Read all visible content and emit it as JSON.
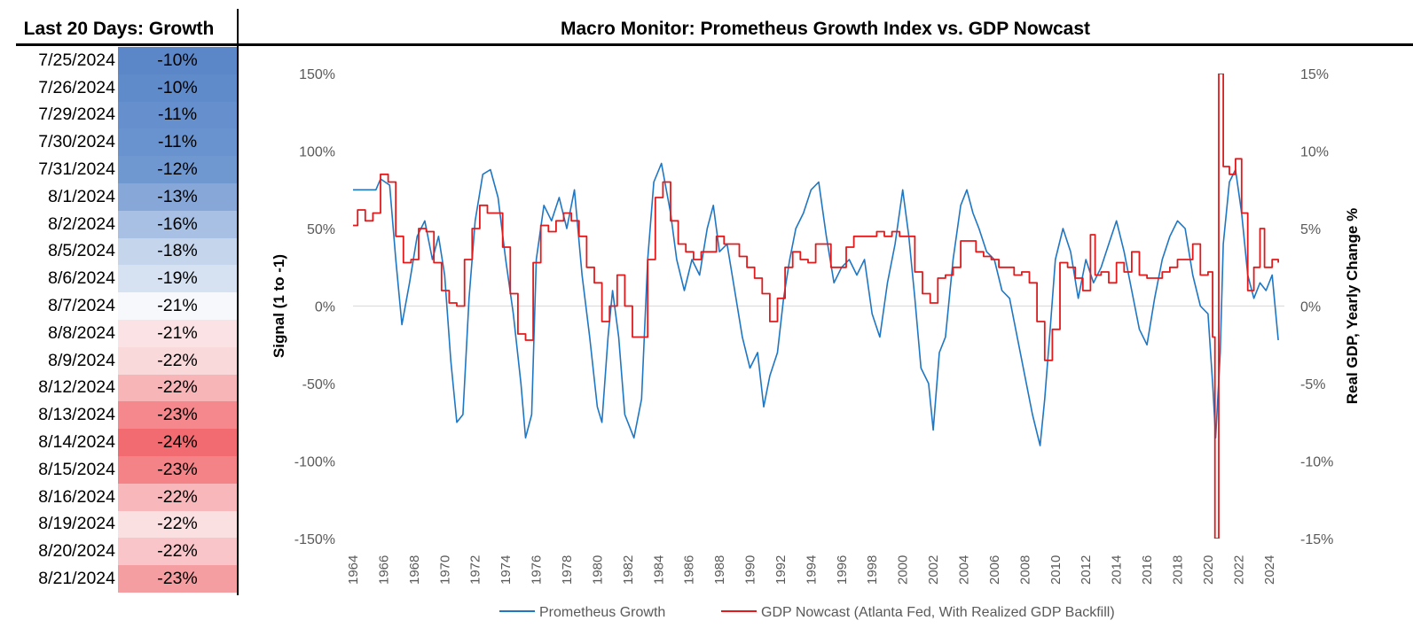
{
  "left_panel": {
    "title": "Last 20 Days: Growth",
    "rows": [
      {
        "date": "7/25/2024",
        "value": "-10%",
        "color": "#5b87c8"
      },
      {
        "date": "7/26/2024",
        "value": "-10%",
        "color": "#5f8bca"
      },
      {
        "date": "7/29/2024",
        "value": "-11%",
        "color": "#6690cd"
      },
      {
        "date": "7/30/2024",
        "value": "-11%",
        "color": "#6893ce"
      },
      {
        "date": "7/31/2024",
        "value": "-12%",
        "color": "#7098d0"
      },
      {
        "date": "8/1/2024",
        "value": "-13%",
        "color": "#86a7d7"
      },
      {
        "date": "8/2/2024",
        "value": "-16%",
        "color": "#a8c0e3"
      },
      {
        "date": "8/5/2024",
        "value": "-18%",
        "color": "#c5d5ec"
      },
      {
        "date": "8/6/2024",
        "value": "-19%",
        "color": "#d6e1f1"
      },
      {
        "date": "8/7/2024",
        "value": "-21%",
        "color": "#f6f8fc"
      },
      {
        "date": "8/8/2024",
        "value": "-21%",
        "color": "#fbe2e4"
      },
      {
        "date": "8/9/2024",
        "value": "-22%",
        "color": "#fad9db"
      },
      {
        "date": "8/12/2024",
        "value": "-22%",
        "color": "#f8b5b8"
      },
      {
        "date": "8/13/2024",
        "value": "-23%",
        "color": "#f4888c"
      },
      {
        "date": "8/14/2024",
        "value": "-24%",
        "color": "#f26b70"
      },
      {
        "date": "8/15/2024",
        "value": "-23%",
        "color": "#f38387"
      },
      {
        "date": "8/16/2024",
        "value": "-22%",
        "color": "#f8b7ba"
      },
      {
        "date": "8/19/2024",
        "value": "-22%",
        "color": "#fbe0e2"
      },
      {
        "date": "8/20/2024",
        "value": "-22%",
        "color": "#f9c5c8"
      },
      {
        "date": "8/21/2024",
        "value": "-23%",
        "color": "#f59ea1"
      }
    ]
  },
  "chart_data": {
    "type": "line",
    "title": "Macro Monitor: Prometheus Growth Index vs. GDP Nowcast",
    "ylabel": "Signal (1 to -1)",
    "y2label": "Real GDP, Yearly Change %",
    "ylim": [
      -1.5,
      1.5
    ],
    "y2lim": [
      -15,
      15
    ],
    "xlim": [
      1964,
      2025
    ],
    "yticks": [
      1.5,
      1.0,
      0.5,
      0.0,
      -0.5,
      -1.0,
      -1.5
    ],
    "yticklabels": [
      "150%",
      "100%",
      "50%",
      "0%",
      "-50%",
      "-100%",
      "-150%"
    ],
    "y2ticks": [
      15,
      10,
      5,
      0,
      -5,
      -10,
      -15
    ],
    "y2ticklabels": [
      "15%",
      "10%",
      "5%",
      "0%",
      "-5%",
      "-10%",
      "-15%"
    ],
    "xticks": [
      "1964",
      "1966",
      "1968",
      "1970",
      "1972",
      "1974",
      "1976",
      "1978",
      "1980",
      "1982",
      "1984",
      "1986",
      "1988",
      "1990",
      "1992",
      "1994",
      "1996",
      "1998",
      "2000",
      "2002",
      "2004",
      "2006",
      "2008",
      "2010",
      "2012",
      "2014",
      "2016",
      "2018",
      "2020",
      "2022",
      "2024"
    ],
    "legend_position": "bottom",
    "series": [
      {
        "name": "Prometheus Growth",
        "axis": "left",
        "color": "#1f77c4",
        "points": [
          [
            1964.0,
            0.75
          ],
          [
            1965.5,
            0.75
          ],
          [
            1965.8,
            0.82
          ],
          [
            1966.4,
            0.78
          ],
          [
            1966.8,
            0.3
          ],
          [
            1967.2,
            -0.12
          ],
          [
            1967.7,
            0.15
          ],
          [
            1968.2,
            0.45
          ],
          [
            1968.7,
            0.55
          ],
          [
            1969.2,
            0.3
          ],
          [
            1969.6,
            0.45
          ],
          [
            1970.0,
            0.2
          ],
          [
            1970.4,
            -0.35
          ],
          [
            1970.8,
            -0.75
          ],
          [
            1971.2,
            -0.7
          ],
          [
            1971.6,
            0.05
          ],
          [
            1972.0,
            0.55
          ],
          [
            1972.5,
            0.85
          ],
          [
            1973.0,
            0.88
          ],
          [
            1973.5,
            0.7
          ],
          [
            1974.0,
            0.3
          ],
          [
            1974.5,
            -0.05
          ],
          [
            1975.0,
            -0.5
          ],
          [
            1975.3,
            -0.85
          ],
          [
            1975.7,
            -0.7
          ],
          [
            1976.0,
            0.3
          ],
          [
            1976.5,
            0.65
          ],
          [
            1977.0,
            0.55
          ],
          [
            1977.5,
            0.7
          ],
          [
            1978.0,
            0.5
          ],
          [
            1978.5,
            0.75
          ],
          [
            1979.0,
            0.2
          ],
          [
            1979.5,
            -0.2
          ],
          [
            1980.0,
            -0.65
          ],
          [
            1980.3,
            -0.75
          ],
          [
            1980.7,
            -0.2
          ],
          [
            1981.0,
            0.1
          ],
          [
            1981.4,
            -0.2
          ],
          [
            1981.8,
            -0.7
          ],
          [
            1982.4,
            -0.85
          ],
          [
            1982.9,
            -0.6
          ],
          [
            1983.3,
            0.3
          ],
          [
            1983.7,
            0.8
          ],
          [
            1984.2,
            0.92
          ],
          [
            1984.8,
            0.6
          ],
          [
            1985.2,
            0.3
          ],
          [
            1985.7,
            0.1
          ],
          [
            1986.2,
            0.3
          ],
          [
            1986.7,
            0.2
          ],
          [
            1987.2,
            0.5
          ],
          [
            1987.6,
            0.65
          ],
          [
            1988.0,
            0.35
          ],
          [
            1988.5,
            0.4
          ],
          [
            1989.0,
            0.1
          ],
          [
            1989.5,
            -0.2
          ],
          [
            1990.0,
            -0.4
          ],
          [
            1990.5,
            -0.3
          ],
          [
            1990.9,
            -0.65
          ],
          [
            1991.3,
            -0.45
          ],
          [
            1991.8,
            -0.3
          ],
          [
            1992.2,
            0.05
          ],
          [
            1992.6,
            0.3
          ],
          [
            1993.0,
            0.5
          ],
          [
            1993.5,
            0.6
          ],
          [
            1994.0,
            0.75
          ],
          [
            1994.5,
            0.8
          ],
          [
            1995.0,
            0.45
          ],
          [
            1995.5,
            0.15
          ],
          [
            1996.0,
            0.25
          ],
          [
            1996.5,
            0.3
          ],
          [
            1997.0,
            0.2
          ],
          [
            1997.5,
            0.3
          ],
          [
            1998.0,
            -0.05
          ],
          [
            1998.5,
            -0.2
          ],
          [
            1999.0,
            0.15
          ],
          [
            1999.5,
            0.4
          ],
          [
            2000.0,
            0.75
          ],
          [
            2000.4,
            0.45
          ],
          [
            2000.8,
            0.05
          ],
          [
            2001.2,
            -0.4
          ],
          [
            2001.7,
            -0.5
          ],
          [
            2002.0,
            -0.8
          ],
          [
            2002.4,
            -0.3
          ],
          [
            2002.8,
            -0.2
          ],
          [
            2003.3,
            0.3
          ],
          [
            2003.8,
            0.65
          ],
          [
            2004.2,
            0.75
          ],
          [
            2004.6,
            0.6
          ],
          [
            2005.0,
            0.5
          ],
          [
            2005.5,
            0.35
          ],
          [
            2006.0,
            0.3
          ],
          [
            2006.5,
            0.1
          ],
          [
            2007.0,
            0.05
          ],
          [
            2007.5,
            -0.2
          ],
          [
            2008.0,
            -0.45
          ],
          [
            2008.5,
            -0.7
          ],
          [
            2009.0,
            -0.9
          ],
          [
            2009.3,
            -0.6
          ],
          [
            2009.7,
            -0.1
          ],
          [
            2010.0,
            0.3
          ],
          [
            2010.5,
            0.5
          ],
          [
            2011.0,
            0.35
          ],
          [
            2011.5,
            0.05
          ],
          [
            2012.0,
            0.3
          ],
          [
            2012.5,
            0.15
          ],
          [
            2013.0,
            0.25
          ],
          [
            2013.5,
            0.4
          ],
          [
            2014.0,
            0.55
          ],
          [
            2014.5,
            0.35
          ],
          [
            2015.0,
            0.1
          ],
          [
            2015.5,
            -0.15
          ],
          [
            2016.0,
            -0.25
          ],
          [
            2016.5,
            0.05
          ],
          [
            2017.0,
            0.3
          ],
          [
            2017.5,
            0.45
          ],
          [
            2018.0,
            0.55
          ],
          [
            2018.5,
            0.5
          ],
          [
            2019.0,
            0.2
          ],
          [
            2019.5,
            0.0
          ],
          [
            2020.0,
            -0.05
          ],
          [
            2020.3,
            -0.5
          ],
          [
            2020.5,
            -0.85
          ],
          [
            2020.8,
            -0.3
          ],
          [
            2021.0,
            0.4
          ],
          [
            2021.4,
            0.8
          ],
          [
            2021.8,
            0.88
          ],
          [
            2022.2,
            0.6
          ],
          [
            2022.6,
            0.2
          ],
          [
            2023.0,
            0.05
          ],
          [
            2023.4,
            0.15
          ],
          [
            2023.8,
            0.1
          ],
          [
            2024.2,
            0.2
          ],
          [
            2024.6,
            -0.22
          ]
        ]
      },
      {
        "name": "GDP Nowcast (Atlanta Fed, With Realized GDP Backfill)",
        "axis": "right",
        "color": "#e31a1c",
        "points": [
          [
            1964.0,
            5.2
          ],
          [
            1964.3,
            6.2
          ],
          [
            1964.8,
            5.5
          ],
          [
            1965.3,
            6.0
          ],
          [
            1965.8,
            8.5
          ],
          [
            1966.3,
            8.0
          ],
          [
            1966.8,
            4.5
          ],
          [
            1967.3,
            2.8
          ],
          [
            1967.8,
            3.0
          ],
          [
            1968.3,
            5.0
          ],
          [
            1968.8,
            4.8
          ],
          [
            1969.3,
            2.8
          ],
          [
            1969.8,
            1.0
          ],
          [
            1970.3,
            0.2
          ],
          [
            1970.8,
            0.0
          ],
          [
            1971.3,
            3.0
          ],
          [
            1971.8,
            5.0
          ],
          [
            1972.3,
            6.5
          ],
          [
            1972.8,
            6.0
          ],
          [
            1973.3,
            6.0
          ],
          [
            1973.8,
            3.8
          ],
          [
            1974.3,
            0.8
          ],
          [
            1974.8,
            -1.8
          ],
          [
            1975.3,
            -2.2
          ],
          [
            1975.8,
            2.8
          ],
          [
            1976.3,
            5.2
          ],
          [
            1976.8,
            4.8
          ],
          [
            1977.3,
            5.5
          ],
          [
            1977.8,
            6.0
          ],
          [
            1978.3,
            5.5
          ],
          [
            1978.8,
            4.5
          ],
          [
            1979.3,
            2.5
          ],
          [
            1979.8,
            1.5
          ],
          [
            1980.3,
            -1.0
          ],
          [
            1980.8,
            0.0
          ],
          [
            1981.3,
            2.0
          ],
          [
            1981.8,
            0.0
          ],
          [
            1982.3,
            -2.0
          ],
          [
            1982.8,
            -2.0
          ],
          [
            1983.3,
            3.0
          ],
          [
            1983.8,
            7.0
          ],
          [
            1984.3,
            8.0
          ],
          [
            1984.8,
            5.5
          ],
          [
            1985.3,
            4.0
          ],
          [
            1985.8,
            3.5
          ],
          [
            1986.3,
            3.0
          ],
          [
            1986.8,
            3.5
          ],
          [
            1987.3,
            3.5
          ],
          [
            1987.8,
            4.5
          ],
          [
            1988.3,
            4.0
          ],
          [
            1988.8,
            4.0
          ],
          [
            1989.3,
            3.2
          ],
          [
            1989.8,
            2.5
          ],
          [
            1990.3,
            1.8
          ],
          [
            1990.8,
            0.8
          ],
          [
            1991.3,
            -1.0
          ],
          [
            1991.8,
            0.5
          ],
          [
            1992.3,
            2.5
          ],
          [
            1992.8,
            3.5
          ],
          [
            1993.3,
            3.0
          ],
          [
            1993.8,
            2.8
          ],
          [
            1994.3,
            4.0
          ],
          [
            1994.8,
            4.0
          ],
          [
            1995.3,
            2.5
          ],
          [
            1995.8,
            2.5
          ],
          [
            1996.3,
            3.8
          ],
          [
            1996.8,
            4.5
          ],
          [
            1997.3,
            4.5
          ],
          [
            1997.8,
            4.5
          ],
          [
            1998.3,
            4.8
          ],
          [
            1998.8,
            4.5
          ],
          [
            1999.3,
            4.8
          ],
          [
            1999.8,
            4.5
          ],
          [
            2000.3,
            4.5
          ],
          [
            2000.8,
            2.2
          ],
          [
            2001.3,
            0.8
          ],
          [
            2001.8,
            0.2
          ],
          [
            2002.3,
            1.8
          ],
          [
            2002.8,
            2.0
          ],
          [
            2003.3,
            2.5
          ],
          [
            2003.8,
            4.2
          ],
          [
            2004.3,
            4.2
          ],
          [
            2004.8,
            3.5
          ],
          [
            2005.3,
            3.2
          ],
          [
            2005.8,
            3.0
          ],
          [
            2006.3,
            2.5
          ],
          [
            2006.8,
            2.5
          ],
          [
            2007.3,
            2.0
          ],
          [
            2007.8,
            2.2
          ],
          [
            2008.3,
            1.5
          ],
          [
            2008.8,
            -1.0
          ],
          [
            2009.3,
            -3.5
          ],
          [
            2009.8,
            -1.5
          ],
          [
            2010.3,
            2.8
          ],
          [
            2010.8,
            2.5
          ],
          [
            2011.3,
            1.8
          ],
          [
            2011.8,
            1.0
          ],
          [
            2012.3,
            4.6
          ],
          [
            2012.6,
            2.0
          ],
          [
            2013.0,
            2.2
          ],
          [
            2013.5,
            1.5
          ],
          [
            2014.0,
            2.8
          ],
          [
            2014.5,
            2.2
          ],
          [
            2015.0,
            3.5
          ],
          [
            2015.5,
            2.0
          ],
          [
            2016.0,
            1.8
          ],
          [
            2016.5,
            1.8
          ],
          [
            2017.0,
            2.2
          ],
          [
            2017.5,
            2.5
          ],
          [
            2018.0,
            3.0
          ],
          [
            2018.5,
            3.0
          ],
          [
            2019.0,
            4.0
          ],
          [
            2019.5,
            2.0
          ],
          [
            2020.0,
            2.2
          ],
          [
            2020.3,
            -2.0
          ],
          [
            2020.45,
            -15.0
          ],
          [
            2020.55,
            -15.0
          ],
          [
            2020.7,
            15.0
          ],
          [
            2020.85,
            15.0
          ],
          [
            2021.0,
            9.0
          ],
          [
            2021.4,
            8.5
          ],
          [
            2021.8,
            9.5
          ],
          [
            2022.2,
            6.0
          ],
          [
            2022.6,
            1.0
          ],
          [
            2023.0,
            2.5
          ],
          [
            2023.4,
            5.0
          ],
          [
            2023.7,
            2.5
          ],
          [
            2024.2,
            3.0
          ],
          [
            2024.6,
            2.8
          ]
        ]
      }
    ]
  }
}
